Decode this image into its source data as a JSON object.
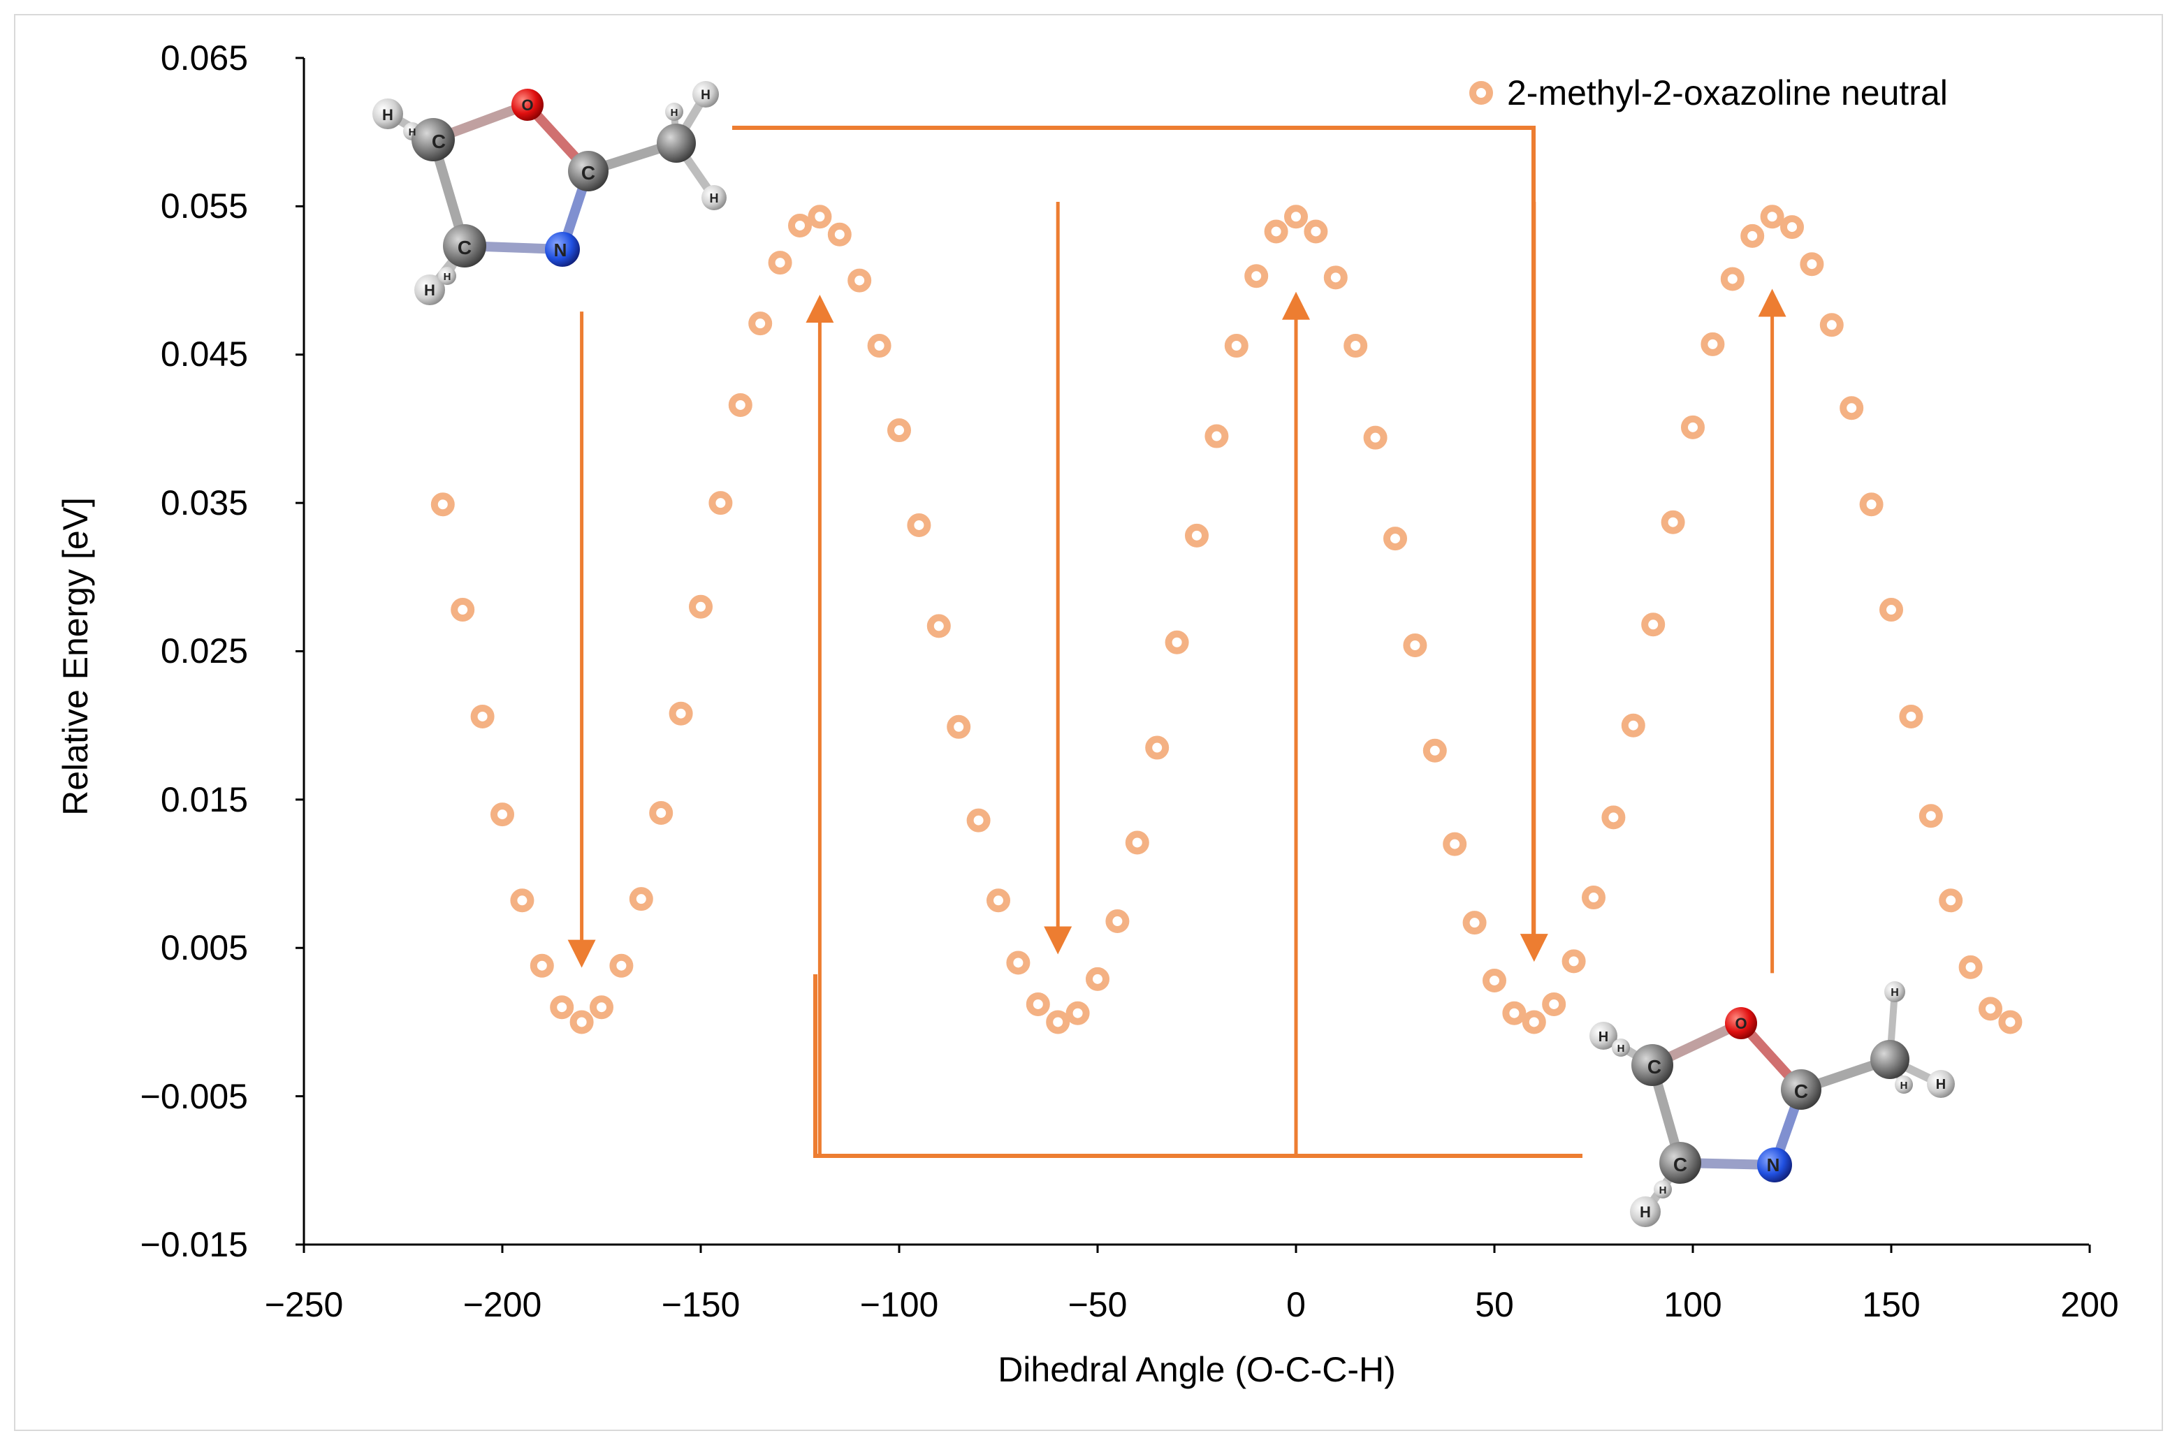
{
  "chart_data": {
    "type": "scatter",
    "title": "",
    "xlabel": "Dihedral Angle (O-C-C-H)",
    "ylabel": "Relative Energy [eV]",
    "xlim": [
      -250,
      200
    ],
    "ylim": [
      -0.015,
      0.065
    ],
    "x_ticks": [
      -250,
      -200,
      -150,
      -100,
      -50,
      0,
      50,
      100,
      150,
      200
    ],
    "x_tick_labels": [
      "−250",
      "−200",
      "−150",
      "−100",
      "−50",
      "0",
      "50",
      "100",
      "150",
      "200"
    ],
    "y_ticks": [
      0.065,
      0.055,
      0.045,
      0.035,
      0.025,
      0.015,
      0.005,
      -0.005,
      -0.015
    ],
    "y_tick_labels": [
      "0.065",
      "0.055",
      "0.045",
      "0.035",
      "0.025",
      "0.015",
      "0.005",
      "−0.005",
      "−0.015"
    ],
    "grid": false,
    "legend_position": "top-right",
    "series": [
      {
        "name": "2-methyl-2-oxazoline neutral",
        "color": "#f4b183",
        "x": [
          -215,
          -210,
          -205,
          -200,
          -195,
          -190,
          -185,
          -180,
          -175,
          -170,
          -165,
          -160,
          -155,
          -150,
          -145,
          -140,
          -135,
          -130,
          -125,
          -120,
          -115,
          -110,
          -105,
          -100,
          -95,
          -90,
          -85,
          -80,
          -75,
          -70,
          -65,
          -60,
          -55,
          -50,
          -45,
          -40,
          -35,
          -30,
          -25,
          -20,
          -15,
          -10,
          -5,
          0,
          5,
          10,
          15,
          20,
          25,
          30,
          35,
          40,
          45,
          50,
          55,
          60,
          65,
          70,
          75,
          80,
          85,
          90,
          95,
          100,
          105,
          110,
          115,
          120,
          125,
          130,
          135,
          140,
          145,
          150,
          155,
          160,
          165,
          170,
          175,
          180
        ],
        "y": [
          0.0349,
          0.0278,
          0.0206,
          0.014,
          0.0082,
          0.0038,
          0.001,
          0.0,
          0.001,
          0.0038,
          0.0083,
          0.0141,
          0.0208,
          0.028,
          0.035,
          0.0416,
          0.0471,
          0.0512,
          0.0537,
          0.0543,
          0.0531,
          0.05,
          0.0456,
          0.0399,
          0.0335,
          0.0267,
          0.0199,
          0.0136,
          0.0082,
          0.004,
          0.0012,
          0.0,
          0.0006,
          0.0029,
          0.0068,
          0.0121,
          0.0185,
          0.0256,
          0.0328,
          0.0395,
          0.0456,
          0.0503,
          0.0533,
          0.0543,
          0.0533,
          0.0502,
          0.0456,
          0.0394,
          0.0326,
          0.0254,
          0.0183,
          0.012,
          0.0067,
          0.0028,
          0.0006,
          0.0,
          0.0012,
          0.0041,
          0.0084,
          0.0138,
          0.02,
          0.0268,
          0.0337,
          0.0401,
          0.0457,
          0.0501,
          0.053,
          0.0543,
          0.0536,
          0.0511,
          0.047,
          0.0414,
          0.0349,
          0.0278,
          0.0206,
          0.0139,
          0.0082,
          0.0037,
          0.0009,
          0.0
        ]
      }
    ],
    "annotations": [
      {
        "type": "arrow",
        "from": [
          -180,
          0.0479
        ],
        "to": [
          -180,
          0.0039
        ]
      },
      {
        "type": "arrow",
        "from": [
          -60,
          0.0553
        ],
        "to": [
          -60,
          0.0048
        ]
      },
      {
        "type": "arrow",
        "from": [
          60,
          0.0553
        ],
        "to": [
          60,
          0.0043
        ]
      },
      {
        "type": "arrow",
        "from": [
          -120,
          -0.0089
        ],
        "to": [
          -120,
          0.0488
        ]
      },
      {
        "type": "arrow",
        "from": [
          0,
          -0.0089
        ],
        "to": [
          0,
          0.049
        ]
      },
      {
        "type": "arrow",
        "from": [
          120,
          0.0033
        ],
        "to": [
          120,
          0.0492
        ]
      }
    ],
    "molecule_atom_labels": [
      "O",
      "C",
      "C",
      "C",
      "N",
      "H",
      "H",
      "H",
      "H",
      "H",
      "H",
      "H"
    ]
  }
}
